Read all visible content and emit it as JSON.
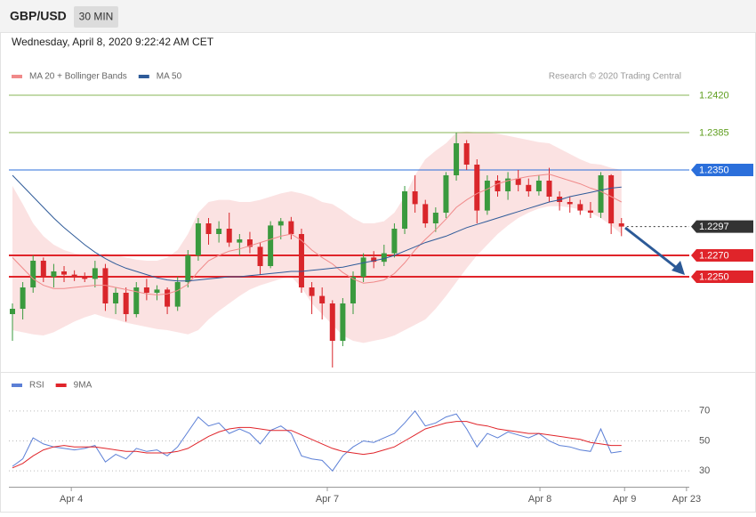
{
  "header": {
    "symbol": "GBP/USD",
    "timeframe": "30 MIN",
    "timestamp": "Wednesday, April 8, 2020 9:22:42 AM CET"
  },
  "chart_data": [
    {
      "type": "candlestick",
      "attribution": "Research © 2020 Trading Central",
      "up_color": "#3a9a3e",
      "down_color": "#d9262b",
      "xlim": [
        0,
        66
      ],
      "ylim": [
        1.2165,
        1.243
      ],
      "open": [
        1.2215,
        1.222,
        1.224,
        1.2265,
        1.225,
        1.2255,
        1.2252,
        1.225,
        1.2248,
        1.2258,
        1.2225,
        1.2235,
        1.2215,
        1.224,
        1.2235,
        1.2238,
        1.2222,
        1.2245,
        1.227,
        1.23,
        1.229,
        1.2295,
        1.2282,
        1.2285,
        1.2278,
        1.226,
        1.2298,
        1.2302,
        1.229,
        1.224,
        1.2232,
        1.2225,
        1.219,
        1.2225,
        1.225,
        1.2268,
        1.2264,
        1.2272,
        1.2295,
        1.233,
        1.2318,
        1.23,
        1.231,
        1.2345,
        1.2375,
        1.2355,
        1.2312,
        1.234,
        1.233,
        1.2342,
        1.2336,
        1.233,
        1.234,
        1.2325,
        1.232,
        1.2318,
        1.2312,
        1.231,
        1.2345,
        1.23
      ],
      "high": [
        1.2225,
        1.2245,
        1.227,
        1.2268,
        1.2262,
        1.226,
        1.2256,
        1.2254,
        1.2265,
        1.2262,
        1.224,
        1.224,
        1.2245,
        1.2248,
        1.2242,
        1.224,
        1.225,
        1.2275,
        1.2305,
        1.2305,
        1.2302,
        1.231,
        1.229,
        1.2292,
        1.2282,
        1.2302,
        1.2305,
        1.2306,
        1.2295,
        1.2245,
        1.224,
        1.2228,
        1.223,
        1.2255,
        1.2272,
        1.2274,
        1.228,
        1.23,
        1.2335,
        1.2345,
        1.2322,
        1.2315,
        1.2348,
        1.2385,
        1.2378,
        1.236,
        1.2345,
        1.2345,
        1.2348,
        1.235,
        1.2342,
        1.2345,
        1.2352,
        1.233,
        1.2325,
        1.2322,
        1.232,
        1.2348,
        1.2346,
        1.2305
      ],
      "low": [
        1.219,
        1.221,
        1.2235,
        1.2245,
        1.224,
        1.2245,
        1.2246,
        1.2245,
        1.224,
        1.2218,
        1.2215,
        1.2208,
        1.2212,
        1.2228,
        1.2228,
        1.2215,
        1.2218,
        1.224,
        1.2265,
        1.228,
        1.2282,
        1.2278,
        1.227,
        1.2272,
        1.2252,
        1.2258,
        1.2285,
        1.2285,
        1.2235,
        1.2215,
        1.221,
        1.2165,
        1.2185,
        1.2215,
        1.2245,
        1.2258,
        1.226,
        1.2268,
        1.229,
        1.231,
        1.2296,
        1.2292,
        1.2305,
        1.234,
        1.235,
        1.23,
        1.2308,
        1.2325,
        1.2322,
        1.233,
        1.2325,
        1.2326,
        1.232,
        1.2312,
        1.231,
        1.2308,
        1.2305,
        1.2305,
        1.229,
        1.2288
      ],
      "close": [
        1.222,
        1.224,
        1.2265,
        1.225,
        1.2255,
        1.2252,
        1.225,
        1.2248,
        1.2258,
        1.2225,
        1.2235,
        1.2215,
        1.224,
        1.2235,
        1.2238,
        1.2222,
        1.2245,
        1.227,
        1.23,
        1.229,
        1.2295,
        1.2282,
        1.2285,
        1.2278,
        1.226,
        1.2298,
        1.2302,
        1.229,
        1.224,
        1.2232,
        1.2225,
        1.219,
        1.2225,
        1.225,
        1.2268,
        1.2264,
        1.2272,
        1.2295,
        1.233,
        1.2318,
        1.23,
        1.231,
        1.2345,
        1.2375,
        1.2355,
        1.2312,
        1.234,
        1.233,
        1.2342,
        1.2336,
        1.233,
        1.234,
        1.2325,
        1.232,
        1.2318,
        1.2312,
        1.231,
        1.2345,
        1.23,
        1.2297
      ],
      "series": [
        {
          "name": "MA 20 + Bollinger Bands",
          "color": "#f08a8a",
          "values": [
            1.2268,
            1.2258,
            1.2248,
            1.2242,
            1.2239,
            1.2239,
            1.224,
            1.2241,
            1.2242,
            1.2242,
            1.224,
            1.2238,
            1.2236,
            1.2234,
            1.2233,
            1.2234,
            1.2237,
            1.2243,
            1.2255,
            1.2265,
            1.227,
            1.2274,
            1.2276,
            1.2279,
            1.2282,
            1.2285,
            1.2288,
            1.229,
            1.2284,
            1.2275,
            1.2268,
            1.2262,
            1.2254,
            1.2248,
            1.2244,
            1.2245,
            1.2247,
            1.2253,
            1.2263,
            1.2275,
            1.2285,
            1.2294,
            1.2304,
            1.2315,
            1.2322,
            1.2328,
            1.2332,
            1.2337,
            1.234,
            1.2342,
            1.2344,
            1.2345,
            1.2346,
            1.2343,
            1.234,
            1.2337,
            1.2333,
            1.233,
            1.2325,
            1.232
          ],
          "upper": [
            1.2335,
            1.2318,
            1.23,
            1.2288,
            1.228,
            1.2275,
            1.2272,
            1.227,
            1.227,
            1.2272,
            1.227,
            1.2268,
            1.2266,
            1.2265,
            1.2265,
            1.2268,
            1.2275,
            1.229,
            1.231,
            1.232,
            1.2322,
            1.2322,
            1.232,
            1.232,
            1.2322,
            1.2325,
            1.2328,
            1.233,
            1.2328,
            1.2325,
            1.232,
            1.2318,
            1.2312,
            1.2305,
            1.23,
            1.23,
            1.2302,
            1.231,
            1.2325,
            1.2345,
            1.236,
            1.2368,
            1.2375,
            1.2385,
            1.2386,
            1.2385,
            1.2385,
            1.2384,
            1.2382,
            1.238,
            1.2378,
            1.2376,
            1.2375,
            1.237,
            1.2365,
            1.236,
            1.2356,
            1.2355,
            1.2352,
            1.235
          ],
          "lower": [
            1.22,
            1.2198,
            1.2196,
            1.2195,
            1.2198,
            1.2203,
            1.2208,
            1.2212,
            1.2215,
            1.2212,
            1.221,
            1.2207,
            1.2205,
            1.2203,
            1.2201,
            1.22,
            1.2198,
            1.2196,
            1.22,
            1.221,
            1.2218,
            1.2225,
            1.2232,
            1.2238,
            1.2242,
            1.2245,
            1.2248,
            1.225,
            1.224,
            1.2225,
            1.2215,
            1.2205,
            1.2195,
            1.219,
            1.2188,
            1.219,
            1.2192,
            1.2195,
            1.22,
            1.2205,
            1.221,
            1.222,
            1.2232,
            1.2245,
            1.2258,
            1.227,
            1.228,
            1.229,
            1.2298,
            1.2305,
            1.231,
            1.2314,
            1.2316,
            1.2316,
            1.2315,
            1.2313,
            1.231,
            1.2305,
            1.2298,
            1.229
          ]
        },
        {
          "name": "MA 50",
          "color": "#2f5b99",
          "values": [
            1.2345,
            1.2335,
            1.2325,
            1.2315,
            1.2305,
            1.2296,
            1.2288,
            1.228,
            1.2273,
            1.2267,
            1.2262,
            1.2258,
            1.2255,
            1.2252,
            1.2249,
            1.2247,
            1.2246,
            1.2246,
            1.2247,
            1.2248,
            1.2249,
            1.225,
            1.225,
            1.2251,
            1.2252,
            1.2253,
            1.2254,
            1.2255,
            1.2255,
            1.2256,
            1.2257,
            1.2258,
            1.2259,
            1.2261,
            1.2263,
            1.2265,
            1.2267,
            1.227,
            1.2274,
            1.2278,
            1.2282,
            1.2285,
            1.2288,
            1.2292,
            1.2296,
            1.2299,
            1.2302,
            1.2305,
            1.2308,
            1.2311,
            1.2314,
            1.2317,
            1.232,
            1.2322,
            1.2325,
            1.2327,
            1.2329,
            1.2331,
            1.2333,
            1.2334
          ]
        }
      ],
      "levels": [
        {
          "value": 1.242,
          "label": "1.2420",
          "color": "#5f9e1e",
          "box": false,
          "width": 0.8,
          "dash": false
        },
        {
          "value": 1.2385,
          "label": "1.2385",
          "color": "#5f9e1e",
          "box": false,
          "width": 0.8,
          "dash": false
        },
        {
          "value": 1.235,
          "label": "1.2350",
          "color": "#2b6fdb",
          "box": true,
          "width": 1,
          "dash": false
        },
        {
          "value": 1.2297,
          "label": "1.2297",
          "color": "#333333",
          "box": true,
          "width": 1,
          "dash": true
        },
        {
          "value": 1.227,
          "label": "1.2270",
          "color": "#e0242a",
          "box": true,
          "width": 2,
          "dash": false
        },
        {
          "value": 1.225,
          "label": "1.2250",
          "color": "#e0242a",
          "box": true,
          "width": 2,
          "dash": false
        }
      ]
    },
    {
      "type": "line",
      "xlim": [
        0,
        66
      ],
      "ylim": [
        20,
        80
      ],
      "yticks": [
        30,
        50,
        70
      ],
      "xticks": [
        {
          "value": 5.7,
          "label": "Apr 4"
        },
        {
          "value": 30.5,
          "label": "Apr 7"
        },
        {
          "value": 51.1,
          "label": "Apr 8"
        },
        {
          "value": 59.3,
          "label": "Apr 9"
        },
        {
          "value": 65.3,
          "label": "Apr 23"
        }
      ],
      "series": [
        {
          "name": "RSI",
          "color": "#5b7fd6",
          "values": [
            33,
            38,
            52,
            48,
            46,
            45,
            44,
            45,
            47,
            36,
            41,
            38,
            45,
            43,
            44,
            40,
            46,
            56,
            66,
            60,
            62,
            55,
            58,
            55,
            48,
            57,
            60,
            55,
            40,
            38,
            37,
            30,
            40,
            46,
            50,
            49,
            52,
            55,
            62,
            70,
            60,
            62,
            66,
            68,
            58,
            46,
            55,
            52,
            56,
            54,
            52,
            55,
            50,
            47,
            46,
            44,
            43,
            58,
            42,
            43
          ]
        },
        {
          "name": "9MA",
          "color": "#e0242a",
          "values": [
            32,
            35,
            40,
            44,
            46,
            47,
            46,
            46,
            46,
            45,
            44,
            43,
            43,
            42,
            42,
            42,
            43,
            45,
            49,
            53,
            56,
            58,
            59,
            59,
            58,
            57,
            57,
            57,
            54,
            51,
            48,
            45,
            43,
            42,
            41,
            42,
            44,
            46,
            50,
            54,
            58,
            60,
            62,
            63,
            63,
            61,
            60,
            58,
            57,
            56,
            55,
            55,
            54,
            53,
            52,
            51,
            49,
            48,
            47,
            47
          ]
        }
      ]
    }
  ]
}
